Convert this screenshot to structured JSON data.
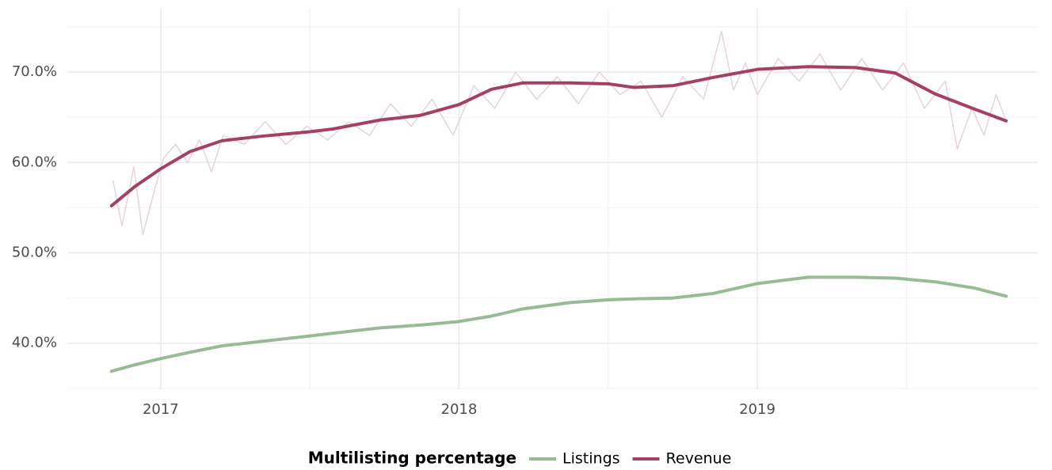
{
  "chart_data": {
    "type": "line",
    "xlim": [
      2016.687,
      2019.94
    ],
    "xticks": [
      2017,
      2018,
      2019
    ],
    "xminor": [
      2017.5,
      2018.5,
      2019.5
    ],
    "ylim": [
      34.9,
      77.1
    ],
    "yticks": [
      {
        "value": 40,
        "label": "40.0%"
      },
      {
        "value": 50,
        "label": "50.0%"
      },
      {
        "value": 60,
        "label": "60.0%"
      },
      {
        "value": 70,
        "label": "70.0%"
      }
    ],
    "yminor": [
      35,
      45,
      55,
      65,
      75
    ],
    "grid": true,
    "legend": "bottom",
    "legend_title": "Multilisting percentage",
    "series": [
      {
        "color": "#e9d2da",
        "width": 1.5,
        "x": [
          2016.84,
          2016.87,
          2016.91,
          2016.94,
          2016.98,
          2017.01,
          2017.05,
          2017.09,
          2017.13,
          2017.17,
          2017.21,
          2017.28,
          2017.35,
          2017.42,
          2017.49,
          2017.56,
          2017.63,
          2017.7,
          2017.77,
          2017.84,
          2017.91,
          2017.98,
          2018.05,
          2018.12,
          2018.19,
          2018.26,
          2018.33,
          2018.4,
          2018.47,
          2018.54,
          2018.61,
          2018.68,
          2018.75,
          2018.82,
          2018.88,
          2018.92,
          2018.96,
          2019.0,
          2019.07,
          2019.14,
          2019.21,
          2019.28,
          2019.35,
          2019.42,
          2019.49,
          2019.56,
          2019.63,
          2019.67,
          2019.72,
          2019.76,
          2019.8,
          2019.83
        ],
        "values": [
          58,
          53,
          59.5,
          52,
          57,
          60.5,
          62,
          60,
          62.5,
          59,
          63,
          62,
          64.5,
          62,
          64,
          62.5,
          64.5,
          63,
          66.5,
          64,
          67,
          63,
          68.5,
          66,
          70,
          67,
          69.5,
          66.5,
          70,
          67.5,
          69,
          65,
          69.5,
          67,
          74.5,
          68,
          71,
          67.5,
          71.5,
          69,
          72,
          68,
          71.5,
          68,
          71,
          66,
          69,
          61.5,
          66,
          63,
          67.5,
          65
        ]
      },
      {
        "name": "Listings",
        "color": "#97bb94",
        "width": 4,
        "x": [
          2016.835,
          2016.912,
          2017.0,
          2017.098,
          2017.205,
          2017.337,
          2017.5,
          2017.576,
          2017.736,
          2017.869,
          2018.0,
          2018.109,
          2018.214,
          2018.373,
          2018.501,
          2018.586,
          2018.718,
          2018.851,
          2019.0,
          2019.17,
          2019.329,
          2019.462,
          2019.595,
          2019.728,
          2019.834
        ],
        "values": [
          36.9,
          37.6,
          38.3,
          39.0,
          39.7,
          40.2,
          40.8,
          41.1,
          41.7,
          42.0,
          42.4,
          43.0,
          43.8,
          44.5,
          44.8,
          44.9,
          45.0,
          45.5,
          46.6,
          47.3,
          47.3,
          47.2,
          46.8,
          46.1,
          45.2
        ]
      },
      {
        "name": "Revenue",
        "color": "#a53f65",
        "width": 4,
        "x": [
          2016.835,
          2016.912,
          2017.0,
          2017.098,
          2017.205,
          2017.337,
          2017.5,
          2017.576,
          2017.736,
          2017.869,
          2018.0,
          2018.109,
          2018.214,
          2018.373,
          2018.501,
          2018.586,
          2018.718,
          2018.851,
          2019.0,
          2019.17,
          2019.329,
          2019.462,
          2019.595,
          2019.728,
          2019.834
        ],
        "values": [
          55.2,
          57.3,
          59.3,
          61.2,
          62.4,
          62.9,
          63.4,
          63.7,
          64.7,
          65.2,
          66.4,
          68.1,
          68.8,
          68.8,
          68.7,
          68.3,
          68.5,
          69.4,
          70.3,
          70.6,
          70.5,
          69.9,
          67.6,
          65.9,
          64.6
        ]
      }
    ]
  }
}
